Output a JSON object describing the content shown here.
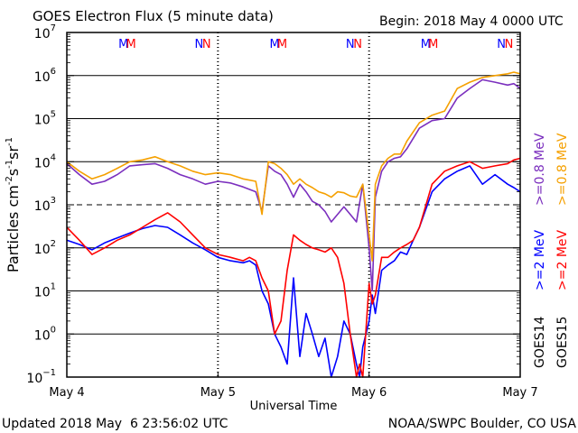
{
  "chart_data": {
    "type": "line",
    "title": "GOES Electron Flux (5 minute data)",
    "begin_label": "Begin: 2018 May 4 0000 UTC",
    "xlabel": "Universal Time",
    "ylabel_main": "Particles cm",
    "ylabel_sup1": "-2",
    "ylabel_mid1": "s",
    "ylabel_sup2": "-1",
    "ylabel_mid2": "sr",
    "ylabel_sup3": "-1",
    "y_scale": "log",
    "ylim": [
      0.1,
      10000000
    ],
    "xlim": [
      0,
      72
    ],
    "x_ticks": [
      {
        "hour": 0,
        "label": "May 4"
      },
      {
        "hour": 24,
        "label": "May 5"
      },
      {
        "hour": 48,
        "label": "May 6"
      },
      {
        "hour": 72,
        "label": "May 7"
      }
    ],
    "y_ticks": [
      {
        "exp": 7,
        "base": "10",
        "sup": "7"
      },
      {
        "exp": 6,
        "base": "10",
        "sup": "6"
      },
      {
        "exp": 5,
        "base": "10",
        "sup": "5"
      },
      {
        "exp": 4,
        "base": "10",
        "sup": "4"
      },
      {
        "exp": 3,
        "base": "10",
        "sup": "3"
      },
      {
        "exp": 2,
        "base": "10",
        "sup": "2"
      },
      {
        "exp": 1,
        "base": "10",
        "sup": "1"
      },
      {
        "exp": 0,
        "base": "10",
        "sup": "0"
      },
      {
        "exp": -1,
        "base": "10",
        "sup": "−1"
      }
    ],
    "grid": true,
    "threshold": {
      "value": 1000,
      "style": "dashed"
    },
    "midnight_markers": [
      {
        "hour": 9.0,
        "label": "M",
        "color": "#0000ff"
      },
      {
        "hour": 10.2,
        "label": "M",
        "color": "#ff0000"
      },
      {
        "hour": 21.0,
        "label": "N",
        "color": "#0000ff"
      },
      {
        "hour": 22.2,
        "label": "N",
        "color": "#ff0000"
      },
      {
        "hour": 33.0,
        "label": "M",
        "color": "#0000ff"
      },
      {
        "hour": 34.2,
        "label": "M",
        "color": "#ff0000"
      },
      {
        "hour": 45.0,
        "label": "N",
        "color": "#0000ff"
      },
      {
        "hour": 46.2,
        "label": "N",
        "color": "#ff0000"
      },
      {
        "hour": 57.0,
        "label": "M",
        "color": "#0000ff"
      },
      {
        "hour": 58.2,
        "label": "M",
        "color": "#ff0000"
      },
      {
        "hour": 69.0,
        "label": "N",
        "color": "#0000ff"
      },
      {
        "hour": 70.2,
        "label": "N",
        "color": "#ff0000"
      }
    ],
    "legend": {
      "placement": "right",
      "groups": [
        {
          "text": ">=0.8 MeV",
          "color": "#7b2fbe"
        },
        {
          "text": ">=0.8 MeV",
          "color": "#f5a000"
        },
        {
          "text": ">=2 MeV",
          "color": "#0000ff"
        },
        {
          "text": ">=2 MeV",
          "color": "#ff0000"
        },
        {
          "text": "GOES14",
          "color": "#000000"
        },
        {
          "text": "GOES15",
          "color": "#000000"
        }
      ]
    },
    "series": [
      {
        "color": "#7b2fbe",
        "x": [
          0,
          2,
          4,
          6,
          8,
          10,
          12,
          14,
          16,
          18,
          20,
          22,
          24,
          26,
          28,
          30,
          31,
          32,
          33,
          34,
          35,
          36,
          37,
          38,
          39,
          40,
          41,
          42,
          43,
          44,
          45,
          46,
          47,
          48,
          48.5,
          49,
          50,
          51,
          52,
          53,
          54,
          56,
          58,
          60,
          62,
          64,
          66,
          68,
          70,
          71,
          72
        ],
        "y": [
          9000,
          5000,
          3000,
          3500,
          5000,
          8000,
          8500,
          9000,
          7000,
          5000,
          4000,
          3000,
          3500,
          3200,
          2600,
          2000,
          700,
          8000,
          6000,
          5000,
          3000,
          1500,
          3000,
          2000,
          1200,
          1000,
          700,
          400,
          600,
          900,
          600,
          400,
          3000,
          100,
          10,
          1500,
          6000,
          10000,
          12000,
          13000,
          20000,
          60000,
          90000,
          100000,
          300000,
          500000,
          800000,
          700000,
          600000,
          650000,
          500000
        ]
      },
      {
        "color": "#f5a000",
        "x": [
          0,
          2,
          4,
          6,
          8,
          10,
          12,
          14,
          16,
          18,
          20,
          22,
          24,
          26,
          28,
          30,
          31,
          32,
          33,
          34,
          35,
          36,
          37,
          38,
          39,
          40,
          41,
          42,
          43,
          44,
          45,
          46,
          47,
          48,
          48.5,
          49,
          50,
          51,
          52,
          53,
          54,
          56,
          58,
          60,
          62,
          64,
          66,
          68,
          70,
          71,
          72
        ],
        "y": [
          10000,
          6000,
          4000,
          5000,
          7000,
          10000,
          11000,
          13000,
          10000,
          8000,
          6000,
          5000,
          5500,
          5000,
          4000,
          3500,
          600,
          10000,
          9000,
          7000,
          5000,
          3000,
          4000,
          3000,
          2500,
          2000,
          1800,
          1500,
          2000,
          1900,
          1600,
          1500,
          3000,
          200,
          50,
          3000,
          8000,
          12000,
          15000,
          15000,
          30000,
          80000,
          120000,
          150000,
          500000,
          700000,
          900000,
          1000000,
          1100000,
          1200000,
          1100000
        ]
      },
      {
        "color": "#0000ff",
        "x": [
          0,
          2,
          4,
          6,
          8,
          10,
          12,
          14,
          16,
          18,
          20,
          22,
          24,
          26,
          28,
          29,
          30,
          31,
          32,
          33,
          34,
          35,
          36,
          37,
          38,
          39,
          40,
          41,
          42,
          43,
          44,
          45,
          46,
          46.5,
          47,
          48,
          48.5,
          49,
          50,
          51,
          52,
          53,
          54,
          55,
          56,
          58,
          60,
          62,
          64,
          66,
          68,
          70,
          71,
          72
        ],
        "y": [
          150,
          120,
          90,
          130,
          170,
          220,
          280,
          330,
          300,
          200,
          130,
          90,
          60,
          50,
          45,
          50,
          40,
          10,
          5,
          1,
          0.5,
          0.2,
          20,
          0.3,
          3,
          1,
          0.3,
          0.8,
          0.1,
          0.3,
          2,
          1,
          0.2,
          0.1,
          0.5,
          2,
          8,
          3,
          30,
          40,
          50,
          80,
          70,
          150,
          300,
          2000,
          4000,
          6000,
          8000,
          3000,
          5000,
          3000,
          2500,
          2000
        ]
      },
      {
        "color": "#ff0000",
        "x": [
          0,
          2,
          4,
          6,
          8,
          10,
          12,
          14,
          16,
          18,
          20,
          22,
          24,
          26,
          28,
          29,
          30,
          31,
          32,
          33,
          34,
          35,
          36,
          37,
          38,
          39,
          40,
          41,
          42,
          43,
          44,
          45,
          46,
          46.5,
          47,
          48,
          48.5,
          49,
          50,
          51,
          52,
          53,
          54,
          55,
          56,
          58,
          60,
          62,
          64,
          66,
          68,
          70,
          71,
          72
        ],
        "y": [
          300,
          150,
          70,
          100,
          150,
          200,
          300,
          450,
          650,
          400,
          200,
          100,
          70,
          60,
          50,
          60,
          50,
          20,
          10,
          1,
          2,
          30,
          200,
          150,
          120,
          100,
          90,
          80,
          100,
          60,
          15,
          1,
          0.1,
          0.2,
          0.1,
          15,
          5,
          8,
          60,
          60,
          80,
          100,
          120,
          150,
          300,
          3000,
          6000,
          8000,
          10000,
          7000,
          8000,
          9000,
          11000,
          12000
        ]
      }
    ]
  },
  "footer": {
    "updated": "Updated 2018 May  6 23:56:02 UTC",
    "source": "NOAA/SWPC Boulder, CO USA"
  }
}
